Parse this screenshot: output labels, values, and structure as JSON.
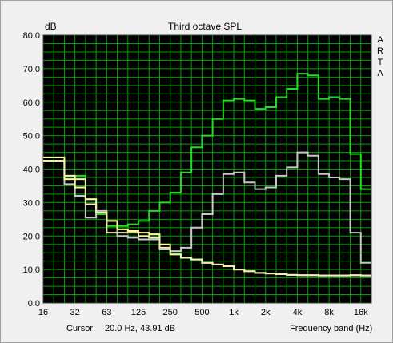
{
  "window": {
    "title": "Third octave SPL",
    "unit_label": "dB",
    "side_label": [
      "A",
      "R",
      "T",
      "A"
    ]
  },
  "status_bar": {
    "cursor_label": "Cursor:",
    "cursor_value": "20.0 Hz, 43.91 dB",
    "x_axis_label": "Frequency band (Hz)"
  },
  "colors": {
    "plot_background": "#000000",
    "grid": "#00a000",
    "series_green": "#22dd22",
    "series_gray": "#c8c8c8",
    "series_yellow": "#ffff99"
  },
  "chart_data": {
    "type": "line",
    "title": "Third octave SPL",
    "xlabel": "Frequency band (Hz)",
    "ylabel": "dB",
    "x_scale": "log",
    "x_tick_labels": [
      "16",
      "32",
      "63",
      "125",
      "250",
      "500",
      "1k",
      "2k",
      "4k",
      "8k",
      "16k"
    ],
    "y_tick_labels": [
      "0.0",
      "10.0",
      "20.0",
      "30.0",
      "40.0",
      "50.0",
      "60.0",
      "70.0",
      "80.0"
    ],
    "ylim": [
      0,
      80
    ],
    "grid": true,
    "x_bands": [
      "16",
      "20",
      "25",
      "31.5",
      "40",
      "50",
      "63",
      "80",
      "100",
      "125",
      "160",
      "200",
      "250",
      "315",
      "400",
      "500",
      "630",
      "800",
      "1k",
      "1.25k",
      "1.6k",
      "2k",
      "2.5k",
      "3.15k",
      "4k",
      "5k",
      "6.3k",
      "8k",
      "10k",
      "12.5k",
      "16k",
      "20k"
    ],
    "series": [
      {
        "values": [
          42.5,
          42.5,
          38.0,
          38.0,
          31.0,
          26.5,
          23.0,
          23.0,
          23.5,
          24.5,
          27.5,
          30.0,
          33.0,
          39.0,
          46.5,
          50.0,
          55.0,
          60.5,
          61.0,
          60.5,
          58.0,
          58.5,
          61.5,
          64.0,
          68.5,
          68.0,
          61.0,
          61.5,
          61.0,
          44.5,
          34.0,
          34.0
        ]
      },
      {
        "values": [
          42.5,
          42.5,
          35.5,
          32.0,
          25.5,
          27.5,
          24.5,
          20.0,
          19.5,
          19.0,
          19.0,
          16.0,
          15.5,
          16.5,
          22.5,
          26.5,
          32.5,
          38.5,
          39.0,
          36.0,
          34.0,
          34.5,
          38.0,
          40.5,
          45.0,
          44.0,
          38.5,
          37.5,
          37.0,
          21.0,
          12.0,
          12.0
        ]
      },
      {
        "values": [
          43.5,
          43.5,
          37.0,
          34.5,
          31.0,
          27.0,
          24.5,
          22.0,
          21.5,
          21.0,
          20.5,
          17.5,
          14.5,
          13.5,
          13.0,
          12.0,
          11.5,
          11.0,
          10.0,
          9.5,
          9.0,
          8.8,
          8.6,
          8.4,
          8.3,
          8.3,
          8.2,
          8.2,
          8.2,
          8.3,
          8.2,
          8.2
        ]
      },
      {
        "values": [
          42.5,
          42.5,
          38.0,
          37.0,
          29.5,
          27.0,
          21.0,
          21.0,
          21.0,
          20.0,
          19.5,
          16.5,
          14.5,
          13.5,
          13.0,
          12.0,
          11.5,
          11.0,
          10.0,
          9.5,
          9.0,
          8.8,
          8.6,
          8.4,
          8.3,
          8.3,
          8.2,
          8.2,
          8.2,
          8.3,
          8.2,
          8.2
        ]
      }
    ]
  }
}
